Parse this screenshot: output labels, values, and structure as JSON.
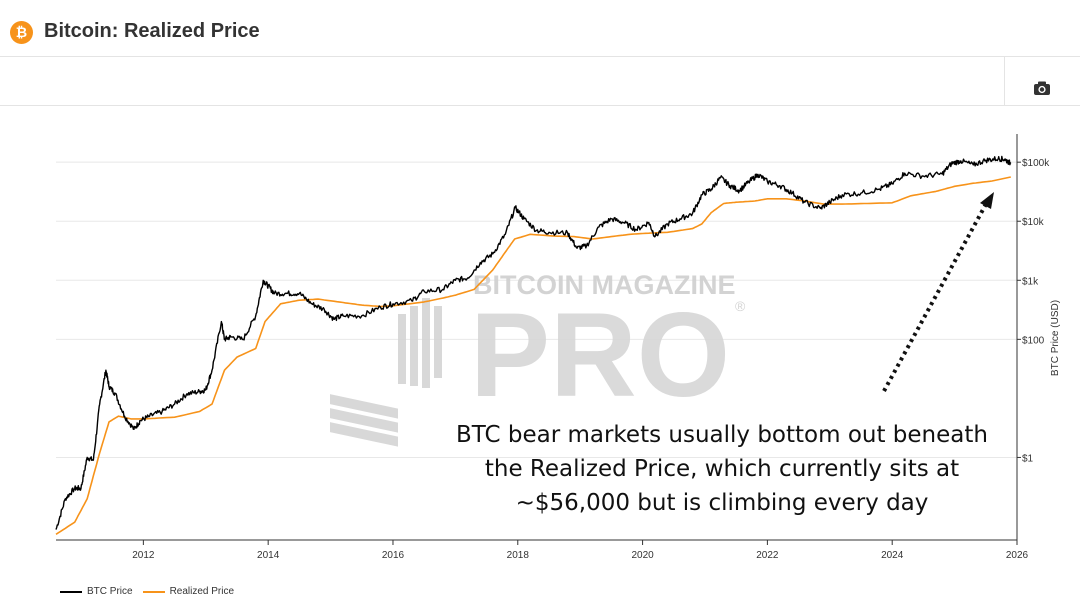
{
  "header": {
    "logo_glyph": "₿",
    "title": "Bitcoin: Realized Price"
  },
  "toolbar": {
    "camera_icon": "camera-icon"
  },
  "watermark": {
    "line1": "BITCOIN MAGAZINE",
    "line2": "PRO",
    "registered": "®"
  },
  "annotation": {
    "text": "BTC bear markets usually bottom out beneath the Realized Price, which currently sits at ~$56,000 but is climbing every day"
  },
  "colors": {
    "btc_price": "#000000",
    "realized_price": "#f7931a",
    "grid": "#e8e8e8",
    "axis": "#333333",
    "watermark": "#cfcfcf"
  },
  "chart_data": {
    "type": "line",
    "title": "Bitcoin: Realized Price",
    "xlabel": "",
    "ylabel": "BTC Price (USD)",
    "yscale": "log",
    "xlim": [
      2010.6,
      2026.0
    ],
    "ylim": [
      0.04,
      300000
    ],
    "x_ticks": [
      2012,
      2014,
      2016,
      2018,
      2020,
      2022,
      2024,
      2026
    ],
    "x_tick_labels": [
      "2012",
      "2014",
      "2016",
      "2018",
      "2020",
      "2022",
      "2024",
      "2026"
    ],
    "y_ticks": [
      1,
      100,
      1000,
      10000,
      100000
    ],
    "y_tick_labels": [
      "$1",
      "$100",
      "$1k",
      "$10k",
      "$100k"
    ],
    "legend_position": "bottom-left",
    "series": [
      {
        "name": "BTC Price",
        "x": [
          2010.6,
          2010.75,
          2010.9,
          2011.0,
          2011.1,
          2011.2,
          2011.3,
          2011.4,
          2011.45,
          2011.55,
          2011.7,
          2011.85,
          2011.95,
          2012.1,
          2012.3,
          2012.5,
          2012.7,
          2012.9,
          2013.0,
          2013.1,
          2013.25,
          2013.3,
          2013.4,
          2013.6,
          2013.8,
          2013.92,
          2014.0,
          2014.1,
          2014.3,
          2014.5,
          2014.7,
          2014.9,
          2015.05,
          2015.2,
          2015.5,
          2015.8,
          2016.0,
          2016.3,
          2016.5,
          2016.8,
          2017.0,
          2017.2,
          2017.4,
          2017.6,
          2017.8,
          2017.96,
          2018.1,
          2018.3,
          2018.5,
          2018.8,
          2018.95,
          2019.1,
          2019.3,
          2019.5,
          2019.7,
          2019.9,
          2020.1,
          2020.2,
          2020.4,
          2020.6,
          2020.8,
          2020.95,
          2021.1,
          2021.25,
          2021.4,
          2021.55,
          2021.7,
          2021.85,
          2022.0,
          2022.2,
          2022.4,
          2022.6,
          2022.85,
          2023.0,
          2023.2,
          2023.5,
          2023.8,
          2024.0,
          2024.2,
          2024.5,
          2024.8,
          2024.95,
          2025.1,
          2025.3,
          2025.5,
          2025.7,
          2025.8,
          2025.9
        ],
        "values": [
          0.06,
          0.2,
          0.3,
          0.3,
          1.0,
          0.9,
          8,
          30,
          16,
          12,
          5,
          3,
          4.2,
          5,
          6,
          8,
          12,
          13,
          14,
          30,
          200,
          100,
          110,
          100,
          250,
          1000,
          800,
          600,
          600,
          600,
          400,
          320,
          220,
          250,
          250,
          350,
          400,
          450,
          650,
          700,
          1000,
          1100,
          2000,
          2800,
          6000,
          17000,
          11000,
          7000,
          6500,
          6300,
          3500,
          3800,
          8000,
          11000,
          9500,
          7200,
          9500,
          5500,
          9000,
          11000,
          13500,
          28000,
          35000,
          55000,
          40000,
          33000,
          46000,
          62000,
          47000,
          40000,
          30000,
          21000,
          16500,
          21000,
          28000,
          30000,
          35000,
          43000,
          65000,
          58000,
          63000,
          95000,
          105000,
          90000,
          108000,
          115000,
          112000,
          95000
        ]
      },
      {
        "name": "Realized Price",
        "x": [
          2010.6,
          2010.9,
          2011.1,
          2011.3,
          2011.45,
          2011.6,
          2011.8,
          2012.0,
          2012.5,
          2012.9,
          2013.1,
          2013.3,
          2013.5,
          2013.8,
          2013.95,
          2014.2,
          2014.5,
          2014.8,
          2015.2,
          2015.5,
          2015.8,
          2016.0,
          2016.5,
          2016.8,
          2017.0,
          2017.3,
          2017.6,
          2017.8,
          2017.95,
          2018.2,
          2018.6,
          2018.9,
          2019.2,
          2019.5,
          2019.8,
          2020.0,
          2020.4,
          2020.8,
          2020.95,
          2021.1,
          2021.3,
          2021.5,
          2021.8,
          2022.0,
          2022.3,
          2022.6,
          2022.9,
          2023.2,
          2023.6,
          2024.0,
          2024.3,
          2024.7,
          2025.0,
          2025.3,
          2025.6,
          2025.9
        ],
        "values": [
          0.05,
          0.08,
          0.2,
          1.2,
          4,
          5,
          4.5,
          4.5,
          4.8,
          6,
          8,
          30,
          50,
          70,
          200,
          400,
          460,
          480,
          420,
          380,
          360,
          370,
          430,
          500,
          560,
          700,
          1500,
          3000,
          5000,
          6000,
          5600,
          5500,
          5000,
          5500,
          6000,
          6200,
          6500,
          7500,
          9000,
          14000,
          20000,
          21000,
          22000,
          24000,
          24000,
          22000,
          19500,
          19500,
          20000,
          20500,
          27000,
          32000,
          39000,
          44000,
          48000,
          56000
        ]
      }
    ]
  },
  "legend": {
    "btc_label": "BTC Price",
    "realized_label": "Realized Price"
  }
}
